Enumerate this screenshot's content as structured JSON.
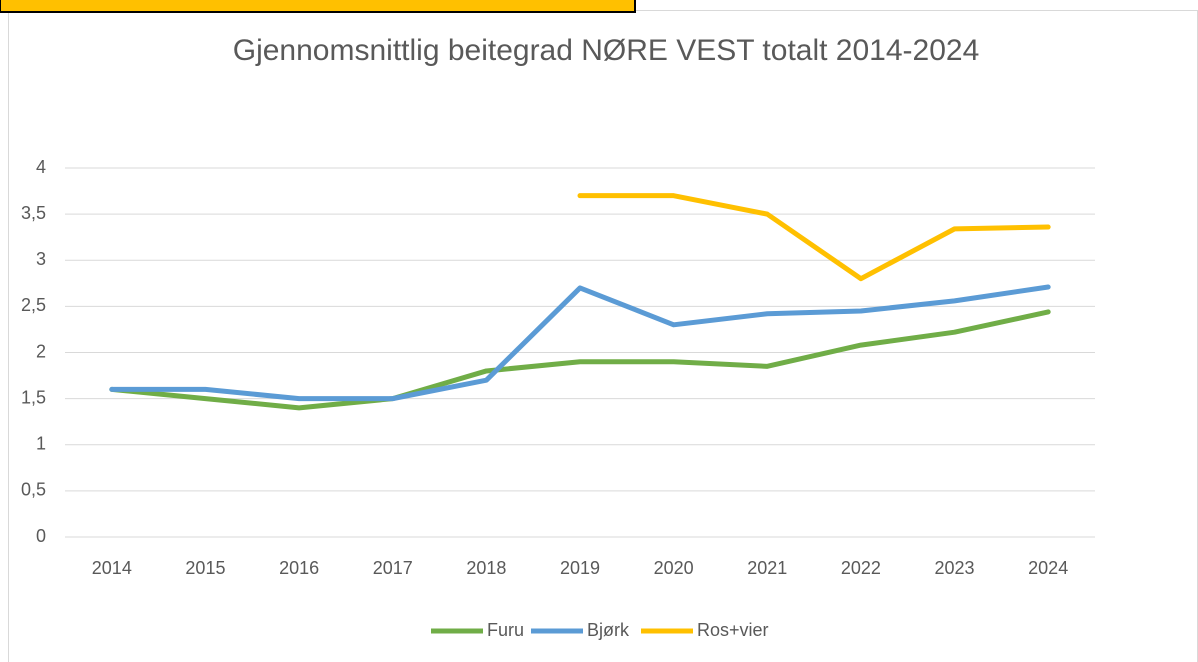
{
  "chart_data": {
    "type": "line",
    "title": "Gjennomsnittlig beitegrad NØRE VEST totalt 2014-2024",
    "categories": [
      "2014",
      "2015",
      "2016",
      "2017",
      "2018",
      "2019",
      "2020",
      "2021",
      "2022",
      "2023",
      "2024"
    ],
    "series": [
      {
        "name": "Furu",
        "color": "#70ad47",
        "values": [
          1.6,
          1.5,
          1.4,
          1.5,
          1.8,
          1.9,
          1.9,
          1.85,
          2.08,
          2.22,
          2.44
        ]
      },
      {
        "name": "Bjørk",
        "color": "#5b9bd5",
        "values": [
          1.6,
          1.6,
          1.5,
          1.5,
          1.7,
          2.7,
          2.3,
          2.42,
          2.45,
          2.56,
          2.71
        ]
      },
      {
        "name": "Ros+vier",
        "color": "#ffc000",
        "values": [
          null,
          null,
          null,
          null,
          null,
          3.7,
          3.7,
          3.5,
          2.8,
          3.34,
          3.36
        ]
      }
    ],
    "ylim": [
      0,
      4
    ],
    "yticks": [
      0,
      {
        "value": 0.5,
        "label": "0,5"
      },
      1,
      {
        "value": 1.5,
        "label": "1,5"
      },
      2,
      {
        "value": 2.5,
        "label": "2,5"
      },
      3,
      {
        "value": 3.5,
        "label": "3,5"
      },
      4
    ],
    "grid": true,
    "legend": "bottom"
  }
}
